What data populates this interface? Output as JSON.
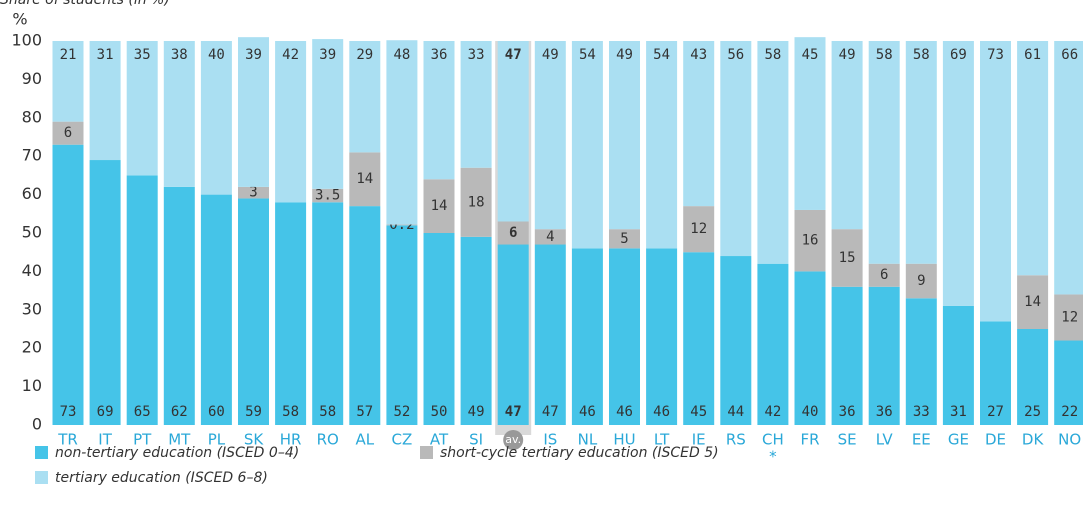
{
  "chart_data": {
    "type": "stacked_bar",
    "title": "Share of students (in %)",
    "y_unit": "%",
    "categories": [
      "TR",
      "IT",
      "PT",
      "MT",
      "PL",
      "SK",
      "HR",
      "RO",
      "AL",
      "CZ",
      "AT",
      "SI",
      "av.",
      "IS",
      "NL",
      "HU",
      "LT",
      "IE",
      "RS",
      "CH",
      "FR",
      "SE",
      "LV",
      "EE",
      "GE",
      "DE",
      "DK",
      "NO"
    ],
    "series": [
      {
        "name": "non-tertiary education (ISCED 0–4)",
        "color": "#45c4e8",
        "values": [
          73,
          69,
          65,
          62,
          60,
          59,
          58,
          58,
          57,
          52,
          50,
          49,
          47,
          47,
          46,
          46,
          46,
          45,
          44,
          42,
          40,
          36,
          36,
          33,
          31,
          27,
          25,
          22
        ]
      },
      {
        "name": "short-cycle tertiary education (ISCED 5)",
        "color": "#b9b9b9",
        "values": [
          6,
          null,
          null,
          null,
          null,
          3,
          null,
          3.5,
          14,
          0.2,
          14,
          18,
          6,
          4,
          null,
          5,
          null,
          12,
          null,
          null,
          16,
          15,
          6,
          9,
          null,
          null,
          14,
          12
        ]
      },
      {
        "name": "tertiary education (ISCED 6–8)",
        "color": "#aadff2",
        "values": [
          21,
          31,
          35,
          38,
          40,
          39,
          42,
          39,
          29,
          48,
          36,
          33,
          47,
          49,
          54,
          49,
          54,
          43,
          56,
          58,
          45,
          49,
          58,
          58,
          69,
          73,
          61,
          66
        ]
      }
    ],
    "highlight": "av.",
    "category_notes": [
      {
        "category": "CH",
        "label": "*"
      }
    ],
    "ylim": [
      0,
      100
    ],
    "yticks": [
      0,
      10,
      20,
      30,
      40,
      50,
      60,
      70,
      80,
      90,
      100
    ],
    "grid": false
  }
}
